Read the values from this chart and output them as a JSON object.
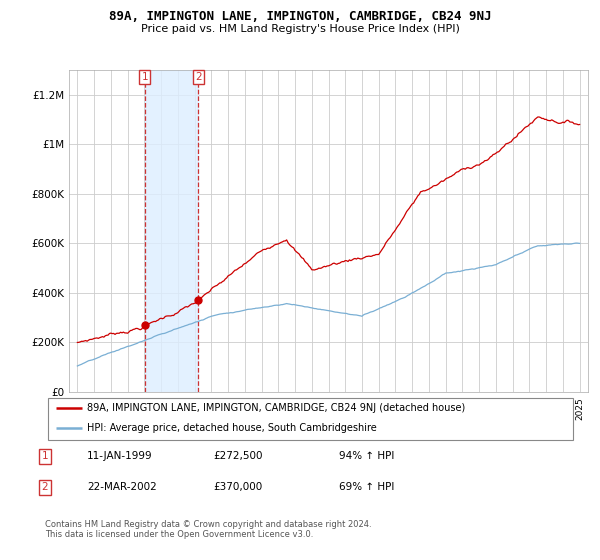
{
  "title": "89A, IMPINGTON LANE, IMPINGTON, CAMBRIDGE, CB24 9NJ",
  "subtitle": "Price paid vs. HM Land Registry's House Price Index (HPI)",
  "legend_label_red": "89A, IMPINGTON LANE, IMPINGTON, CAMBRIDGE, CB24 9NJ (detached house)",
  "legend_label_blue": "HPI: Average price, detached house, South Cambridgeshire",
  "table_rows": [
    {
      "num": "1",
      "date": "11-JAN-1999",
      "price": "£272,500",
      "hpi": "94% ↑ HPI"
    },
    {
      "num": "2",
      "date": "22-MAR-2002",
      "price": "£370,000",
      "hpi": "69% ↑ HPI"
    }
  ],
  "footnote": "Contains HM Land Registry data © Crown copyright and database right 2024.\nThis data is licensed under the Open Government Licence v3.0.",
  "vline1_year": 1999.03,
  "vline2_year": 2002.22,
  "dot1_x": 1999.03,
  "dot1_y": 272500,
  "dot2_x": 2002.22,
  "dot2_y": 370000,
  "ylim": [
    0,
    1300000
  ],
  "xlim_start": 1994.5,
  "xlim_end": 2025.5,
  "red_color": "#cc0000",
  "blue_color": "#7aafd4",
  "vline_color": "#cc3333",
  "span_color": "#ddeeff",
  "background_color": "#ffffff",
  "plot_bg_color": "#ffffff",
  "grid_color": "#cccccc",
  "yticks": [
    0,
    200000,
    400000,
    600000,
    800000,
    1000000,
    1200000
  ],
  "ytick_labels": [
    "£0",
    "£200K",
    "£400K",
    "£600K",
    "£800K",
    "£1M",
    "£1.2M"
  ],
  "xticks": [
    1995,
    1996,
    1997,
    1998,
    1999,
    2000,
    2001,
    2002,
    2003,
    2004,
    2005,
    2006,
    2007,
    2008,
    2009,
    2010,
    2011,
    2012,
    2013,
    2014,
    2015,
    2016,
    2017,
    2018,
    2019,
    2020,
    2021,
    2022,
    2023,
    2024,
    2025
  ]
}
